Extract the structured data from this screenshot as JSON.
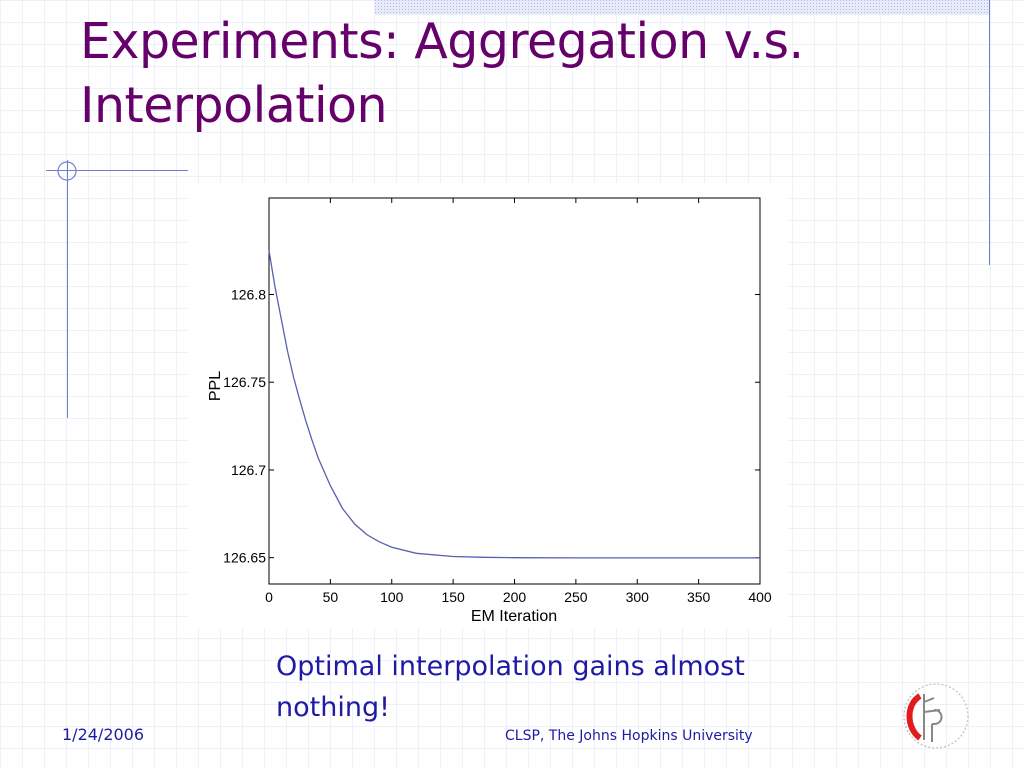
{
  "slide": {
    "title": "Experiments: Aggregation v.s. Interpolation",
    "caption": "Optimal interpolation gains almost nothing!",
    "footer_date": "1/24/2006",
    "footer_org": "CLSP, The Johns Hopkins University",
    "logo_icon": "clsp-logo-icon",
    "colors": {
      "title": "#66006a",
      "text": "#1f1aa4",
      "grid": "#d9def3",
      "rule": "#6f7fd0",
      "curve": "#5a5fb0"
    }
  },
  "chart_data": {
    "type": "line",
    "title": "",
    "xlabel": "EM Iteration",
    "ylabel": "PPL",
    "xlim": [
      0,
      400
    ],
    "ylim": [
      126.635,
      126.855
    ],
    "xticks": [
      0,
      50,
      100,
      150,
      200,
      250,
      300,
      350,
      400
    ],
    "yticks": [
      126.65,
      126.7,
      126.75,
      126.8
    ],
    "ytick_labels": [
      "126.65",
      "126.7",
      "126.75",
      "126.8"
    ],
    "grid": false,
    "series": [
      {
        "x": [
          0,
          5,
          10,
          15,
          20,
          25,
          30,
          35,
          40,
          50,
          60,
          70,
          80,
          90,
          100,
          120,
          150,
          175,
          200,
          250,
          300,
          350,
          400
        ],
        "y": [
          126.825,
          126.804,
          126.786,
          126.768,
          126.753,
          126.74,
          126.728,
          126.717,
          126.707,
          126.691,
          126.678,
          126.669,
          126.663,
          126.659,
          126.656,
          126.6525,
          126.6507,
          126.6502,
          126.65,
          126.6499,
          126.6499,
          126.6499,
          126.6499
        ]
      }
    ]
  }
}
